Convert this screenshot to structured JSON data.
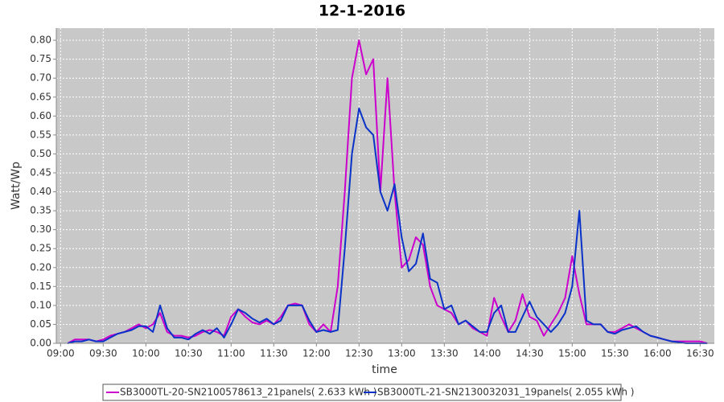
{
  "chart_data": {
    "type": "line",
    "title": "12-1-2016",
    "x_label": "time",
    "y_label": "Watt/Wp",
    "x": [
      "09:05",
      "09:10",
      "09:15",
      "09:20",
      "09:25",
      "09:30",
      "09:35",
      "09:40",
      "09:45",
      "09:50",
      "09:55",
      "10:00",
      "10:05",
      "10:10",
      "10:15",
      "10:20",
      "10:25",
      "10:30",
      "10:35",
      "10:40",
      "10:45",
      "10:50",
      "10:55",
      "11:00",
      "11:05",
      "11:10",
      "11:15",
      "11:20",
      "11:25",
      "11:30",
      "11:35",
      "11:40",
      "11:45",
      "11:50",
      "11:55",
      "12:00",
      "12:05",
      "12:10",
      "12:15",
      "12:20",
      "12:25",
      "12:30",
      "12:35",
      "12:40",
      "12:45",
      "12:50",
      "12:55",
      "13:00",
      "13:05",
      "13:10",
      "13:15",
      "13:20",
      "13:25",
      "13:30",
      "13:35",
      "13:40",
      "13:45",
      "13:50",
      "13:55",
      "14:00",
      "14:05",
      "14:10",
      "14:15",
      "14:20",
      "14:25",
      "14:30",
      "14:35",
      "14:40",
      "14:45",
      "14:50",
      "14:55",
      "15:00",
      "15:05",
      "15:10",
      "15:15",
      "15:20",
      "15:25",
      "15:30",
      "15:35",
      "15:40",
      "15:45",
      "15:50",
      "15:55",
      "16:00",
      "16:05",
      "16:10",
      "16:15",
      "16:20",
      "16:25",
      "16:30",
      "16:35"
    ],
    "series": [
      {
        "name": "SB3000TL-20-SN2100578613_21panels( 2.633 kWh )",
        "color": "#cc00cc",
        "values": [
          0.0,
          0.01,
          0.01,
          0.01,
          0.005,
          0.01,
          0.02,
          0.025,
          0.03,
          0.04,
          0.05,
          0.04,
          0.05,
          0.08,
          0.03,
          0.02,
          0.02,
          0.015,
          0.02,
          0.03,
          0.035,
          0.03,
          0.02,
          0.07,
          0.09,
          0.07,
          0.055,
          0.05,
          0.06,
          0.05,
          0.07,
          0.1,
          0.105,
          0.1,
          0.05,
          0.03,
          0.05,
          0.03,
          0.15,
          0.4,
          0.7,
          0.8,
          0.71,
          0.75,
          0.4,
          0.7,
          0.4,
          0.2,
          0.22,
          0.28,
          0.26,
          0.15,
          0.1,
          0.09,
          0.08,
          0.05,
          0.06,
          0.04,
          0.03,
          0.02,
          0.12,
          0.07,
          0.03,
          0.06,
          0.13,
          0.07,
          0.06,
          0.02,
          0.05,
          0.08,
          0.12,
          0.23,
          0.13,
          0.05,
          0.05,
          0.05,
          0.03,
          0.03,
          0.04,
          0.05,
          0.04,
          0.03,
          0.02,
          0.015,
          0.01,
          0.005,
          0.005,
          0.005,
          0.005,
          0.005,
          0.0
        ]
      },
      {
        "name": "SB3000TL-21-SN2130032031_19panels( 2.055 kWh )",
        "color": "#0a32c8",
        "values": [
          0.0,
          0.005,
          0.005,
          0.01,
          0.005,
          0.005,
          0.015,
          0.025,
          0.03,
          0.035,
          0.045,
          0.045,
          0.03,
          0.1,
          0.04,
          0.015,
          0.015,
          0.01,
          0.025,
          0.035,
          0.025,
          0.04,
          0.015,
          0.05,
          0.09,
          0.08,
          0.065,
          0.055,
          0.065,
          0.05,
          0.06,
          0.1,
          0.1,
          0.1,
          0.06,
          0.03,
          0.035,
          0.03,
          0.035,
          0.25,
          0.5,
          0.62,
          0.57,
          0.55,
          0.4,
          0.35,
          0.42,
          0.28,
          0.19,
          0.21,
          0.29,
          0.17,
          0.16,
          0.09,
          0.1,
          0.05,
          0.06,
          0.045,
          0.03,
          0.03,
          0.08,
          0.1,
          0.03,
          0.03,
          0.07,
          0.11,
          0.07,
          0.05,
          0.03,
          0.05,
          0.08,
          0.15,
          0.35,
          0.06,
          0.05,
          0.05,
          0.03,
          0.025,
          0.035,
          0.04,
          0.045,
          0.03,
          0.02,
          0.015,
          0.01,
          0.005,
          0.003,
          0.0,
          0.0,
          0.0,
          0.0
        ]
      }
    ],
    "xlim": [
      "08:57",
      "16:40"
    ],
    "xticks": [
      "09:00",
      "09:30",
      "10:00",
      "10:30",
      "11:00",
      "11:30",
      "12:00",
      "12:30",
      "13:00",
      "13:30",
      "14:00",
      "14:30",
      "15:00",
      "15:30",
      "16:00",
      "16:30"
    ],
    "ylim": [
      0,
      0.832
    ],
    "yticks": [
      {
        "value": 0,
        "label": "0.00"
      },
      {
        "value": 0.05,
        "label": "0.05"
      },
      {
        "value": 0.1,
        "label": "0.10"
      },
      {
        "value": 0.15,
        "label": "0.15"
      },
      {
        "value": 0.2,
        "label": "0.20"
      },
      {
        "value": 0.25,
        "label": "0.25"
      },
      {
        "value": 0.3,
        "label": "0.30"
      },
      {
        "value": 0.35,
        "label": "0.35"
      },
      {
        "value": 0.4,
        "label": "0.40"
      },
      {
        "value": 0.45,
        "label": "0.45"
      },
      {
        "value": 0.5,
        "label": "0.50"
      },
      {
        "value": 0.55,
        "label": "0.55"
      },
      {
        "value": 0.6,
        "label": "0.60"
      },
      {
        "value": 0.65,
        "label": "0.65"
      },
      {
        "value": 0.7,
        "label": "0.70"
      },
      {
        "value": 0.75,
        "label": "0.75"
      },
      {
        "value": 0.8,
        "label": "0.80"
      }
    ],
    "grid": true,
    "legend": "bottom"
  }
}
